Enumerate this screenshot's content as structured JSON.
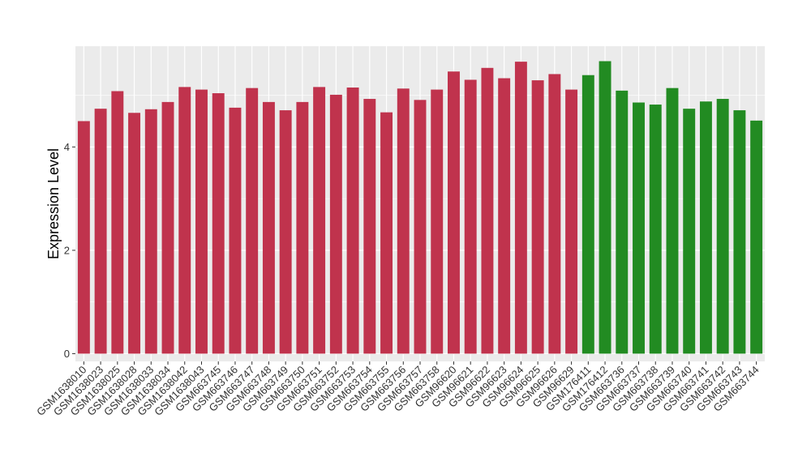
{
  "chart_data": {
    "type": "bar",
    "title": "",
    "xlabel": "",
    "ylabel": "Expression Level",
    "ylim": [
      -0.15,
      5.95
    ],
    "yticks": [
      0,
      2,
      4
    ],
    "grid": true,
    "legend": "none",
    "panel_color": "#ebebeb",
    "grid_color": "#ffffff",
    "categories": [
      "GSM1638010",
      "GSM1638023",
      "GSM1638025",
      "GSM1638028",
      "GSM1638033",
      "GSM1638034",
      "GSM1638042",
      "GSM1638043",
      "GSM663745",
      "GSM663746",
      "GSM663747",
      "GSM663748",
      "GSM663749",
      "GSM663750",
      "GSM663751",
      "GSM663752",
      "GSM663753",
      "GSM663754",
      "GSM663755",
      "GSM663756",
      "GSM663757",
      "GSM663758",
      "GSM96620",
      "GSM96621",
      "GSM96622",
      "GSM96623",
      "GSM96624",
      "GSM96625",
      "GSM96626",
      "GSM96629",
      "GSM176411",
      "GSM176412",
      "GSM663736",
      "GSM663737",
      "GSM663738",
      "GSM663739",
      "GSM663740",
      "GSM663741",
      "GSM663742",
      "GSM663743",
      "GSM663744"
    ],
    "values": [
      4.5,
      4.74,
      5.08,
      4.66,
      4.73,
      4.87,
      5.16,
      5.11,
      5.04,
      4.76,
      5.14,
      4.87,
      4.71,
      4.87,
      5.16,
      5.01,
      5.15,
      4.93,
      4.67,
      5.13,
      4.91,
      5.11,
      5.46,
      5.3,
      5.53,
      5.33,
      5.65,
      5.29,
      5.41,
      5.11,
      5.39,
      5.66,
      5.09,
      4.86,
      4.82,
      5.14,
      4.74,
      4.88,
      4.93,
      4.71,
      4.51
    ],
    "colors": [
      "#c0334d",
      "#c0334d",
      "#c0334d",
      "#c0334d",
      "#c0334d",
      "#c0334d",
      "#c0334d",
      "#c0334d",
      "#c0334d",
      "#c0334d",
      "#c0334d",
      "#c0334d",
      "#c0334d",
      "#c0334d",
      "#c0334d",
      "#c0334d",
      "#c0334d",
      "#c0334d",
      "#c0334d",
      "#c0334d",
      "#c0334d",
      "#c0334d",
      "#c0334d",
      "#c0334d",
      "#c0334d",
      "#c0334d",
      "#c0334d",
      "#c0334d",
      "#c0334d",
      "#c0334d",
      "#228b22",
      "#228b22",
      "#228b22",
      "#228b22",
      "#228b22",
      "#228b22",
      "#228b22",
      "#228b22",
      "#228b22",
      "#228b22",
      "#228b22"
    ]
  }
}
